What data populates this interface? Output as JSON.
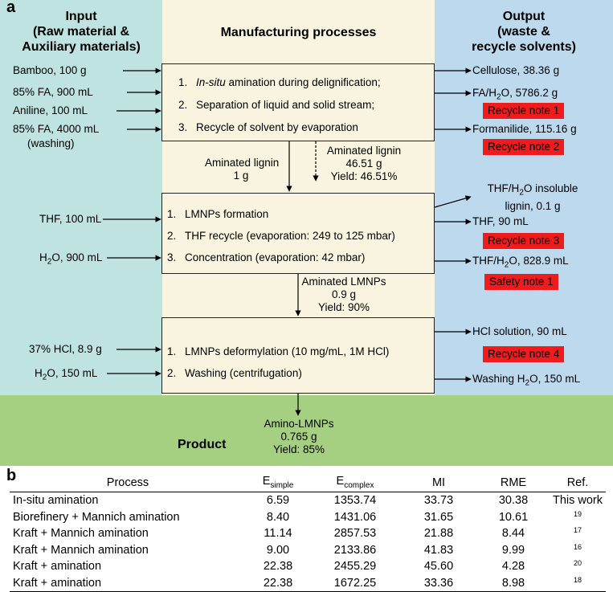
{
  "panel_a": "a",
  "panel_b": "b",
  "headers": {
    "input": "Input\n(Raw material &\nAuxiliary materials)",
    "input_l1": "Input",
    "input_l2": "(Raw material &",
    "input_l3": "Auxiliary materials)",
    "process": "Manufacturing processes",
    "output_l1": "Output",
    "output_l2": "(waste &",
    "output_l3": "recycle solvents)"
  },
  "stage1": {
    "inputs": [
      "Bamboo, 100 g",
      "85% FA, 900 mL",
      "Aniline, 100 mL",
      "85% FA, 4000 mL",
      "(washing)"
    ],
    "steps": [
      {
        "num": "1.",
        "em": "In-situ",
        "text": " amination during delignification;"
      },
      {
        "num": "2.",
        "text": "Separation of liquid  and solid stream;"
      },
      {
        "num": "3.",
        "text": "Recycle of solvent by evaporation"
      }
    ],
    "outputs": [
      "Cellulose, 38.36 g",
      "FA/H",
      "2",
      "O, 5786.2 g",
      "Formanilide, 115.16 g"
    ],
    "notes": [
      "Recycle note 1",
      "Recycle note 2"
    ]
  },
  "transfer1": {
    "left_l1": "Aminated lignin",
    "left_l2": "1 g",
    "right_l1": "Aminated lignin",
    "right_l2": "46.51 g",
    "right_l3": "Yield: 46.51%"
  },
  "stage2": {
    "inputs": [
      "THF, 100 mL",
      "H",
      "2",
      "O, 900 mL"
    ],
    "steps": [
      {
        "num": "1.",
        "text": "LMNPs formation"
      },
      {
        "num": "2.",
        "text": "THF recycle (evaporation: 249 to 125 mbar)"
      },
      {
        "num": "3.",
        "text": "Concentration (evaporation: 42 mbar)"
      }
    ],
    "out1_l1": "THF/H",
    "out1_sub": "2",
    "out1_l1b": "O insoluble",
    "out1_l2": "lignin, 0.1 g",
    "out2": "THF, 90 mL",
    "out3a": "THF/H",
    "out3_sub": "2",
    "out3b": "O, 828.9 mL",
    "notes": [
      "Recycle note 3",
      "Safety note 1"
    ]
  },
  "transfer2": {
    "l1": "Aminated LMNPs",
    "l2": "0.9 g",
    "l3": "Yield: 90%"
  },
  "stage3": {
    "inputs": [
      "37% HCl, 8.9 g",
      "H",
      "2",
      "O, 150 mL"
    ],
    "steps": [
      {
        "num": "1.",
        "text": "LMNPs deformylation (10 mg/mL, 1M HCl)"
      },
      {
        "num": "2.",
        "text": "Washing (centrifugation)"
      }
    ],
    "out1": "HCl solution, 90 mL",
    "out2a": "Washing H",
    "out2_sub": "2",
    "out2b": "O, 150 mL",
    "notes": [
      "Recycle note 4"
    ]
  },
  "product": {
    "label": "Product",
    "l1": "Amino-LMNPs",
    "l2": "0.765 g",
    "l3": "Yield: 85%"
  },
  "table": {
    "headers": {
      "process": "Process",
      "e_simple": "E",
      "e_simple_sub": "simple",
      "e_complex": "E",
      "e_complex_sub": "complex",
      "mi": "MI",
      "rme": "RME",
      "ref": "Ref."
    },
    "rows": [
      {
        "process": "In-situ amination",
        "e_simple": "6.59",
        "e_complex": "1353.74",
        "mi": "33.73",
        "rme": "30.38",
        "ref": "This work"
      },
      {
        "process": "Biorefinery + Mannich amination",
        "e_simple": "8.40",
        "e_complex": "1431.06",
        "mi": "31.65",
        "rme": "10.61",
        "ref": "19"
      },
      {
        "process": "Kraft + Mannich amination",
        "e_simple": "11.14",
        "e_complex": "2857.53",
        "mi": "21.88",
        "rme": "8.44",
        "ref": "17"
      },
      {
        "process": "Kraft + Mannich amination",
        "e_simple": "9.00",
        "e_complex": "2133.86",
        "mi": "41.83",
        "rme": "9.99",
        "ref": "16"
      },
      {
        "process": "Kraft + amination",
        "e_simple": "22.38",
        "e_complex": "2455.29",
        "mi": "45.60",
        "rme": "4.28",
        "ref": "20"
      },
      {
        "process": "Kraft + amination",
        "e_simple": "22.38",
        "e_complex": "1672.25",
        "mi": "33.36",
        "rme": "8.98",
        "ref": "18"
      }
    ]
  },
  "colors": {
    "input_bg": "#bfe3e0",
    "process_bg": "#f8f4df",
    "output_bg": "#bcd9ee",
    "product_bg": "#a6d081",
    "note_bg": "#ee1c1c"
  }
}
